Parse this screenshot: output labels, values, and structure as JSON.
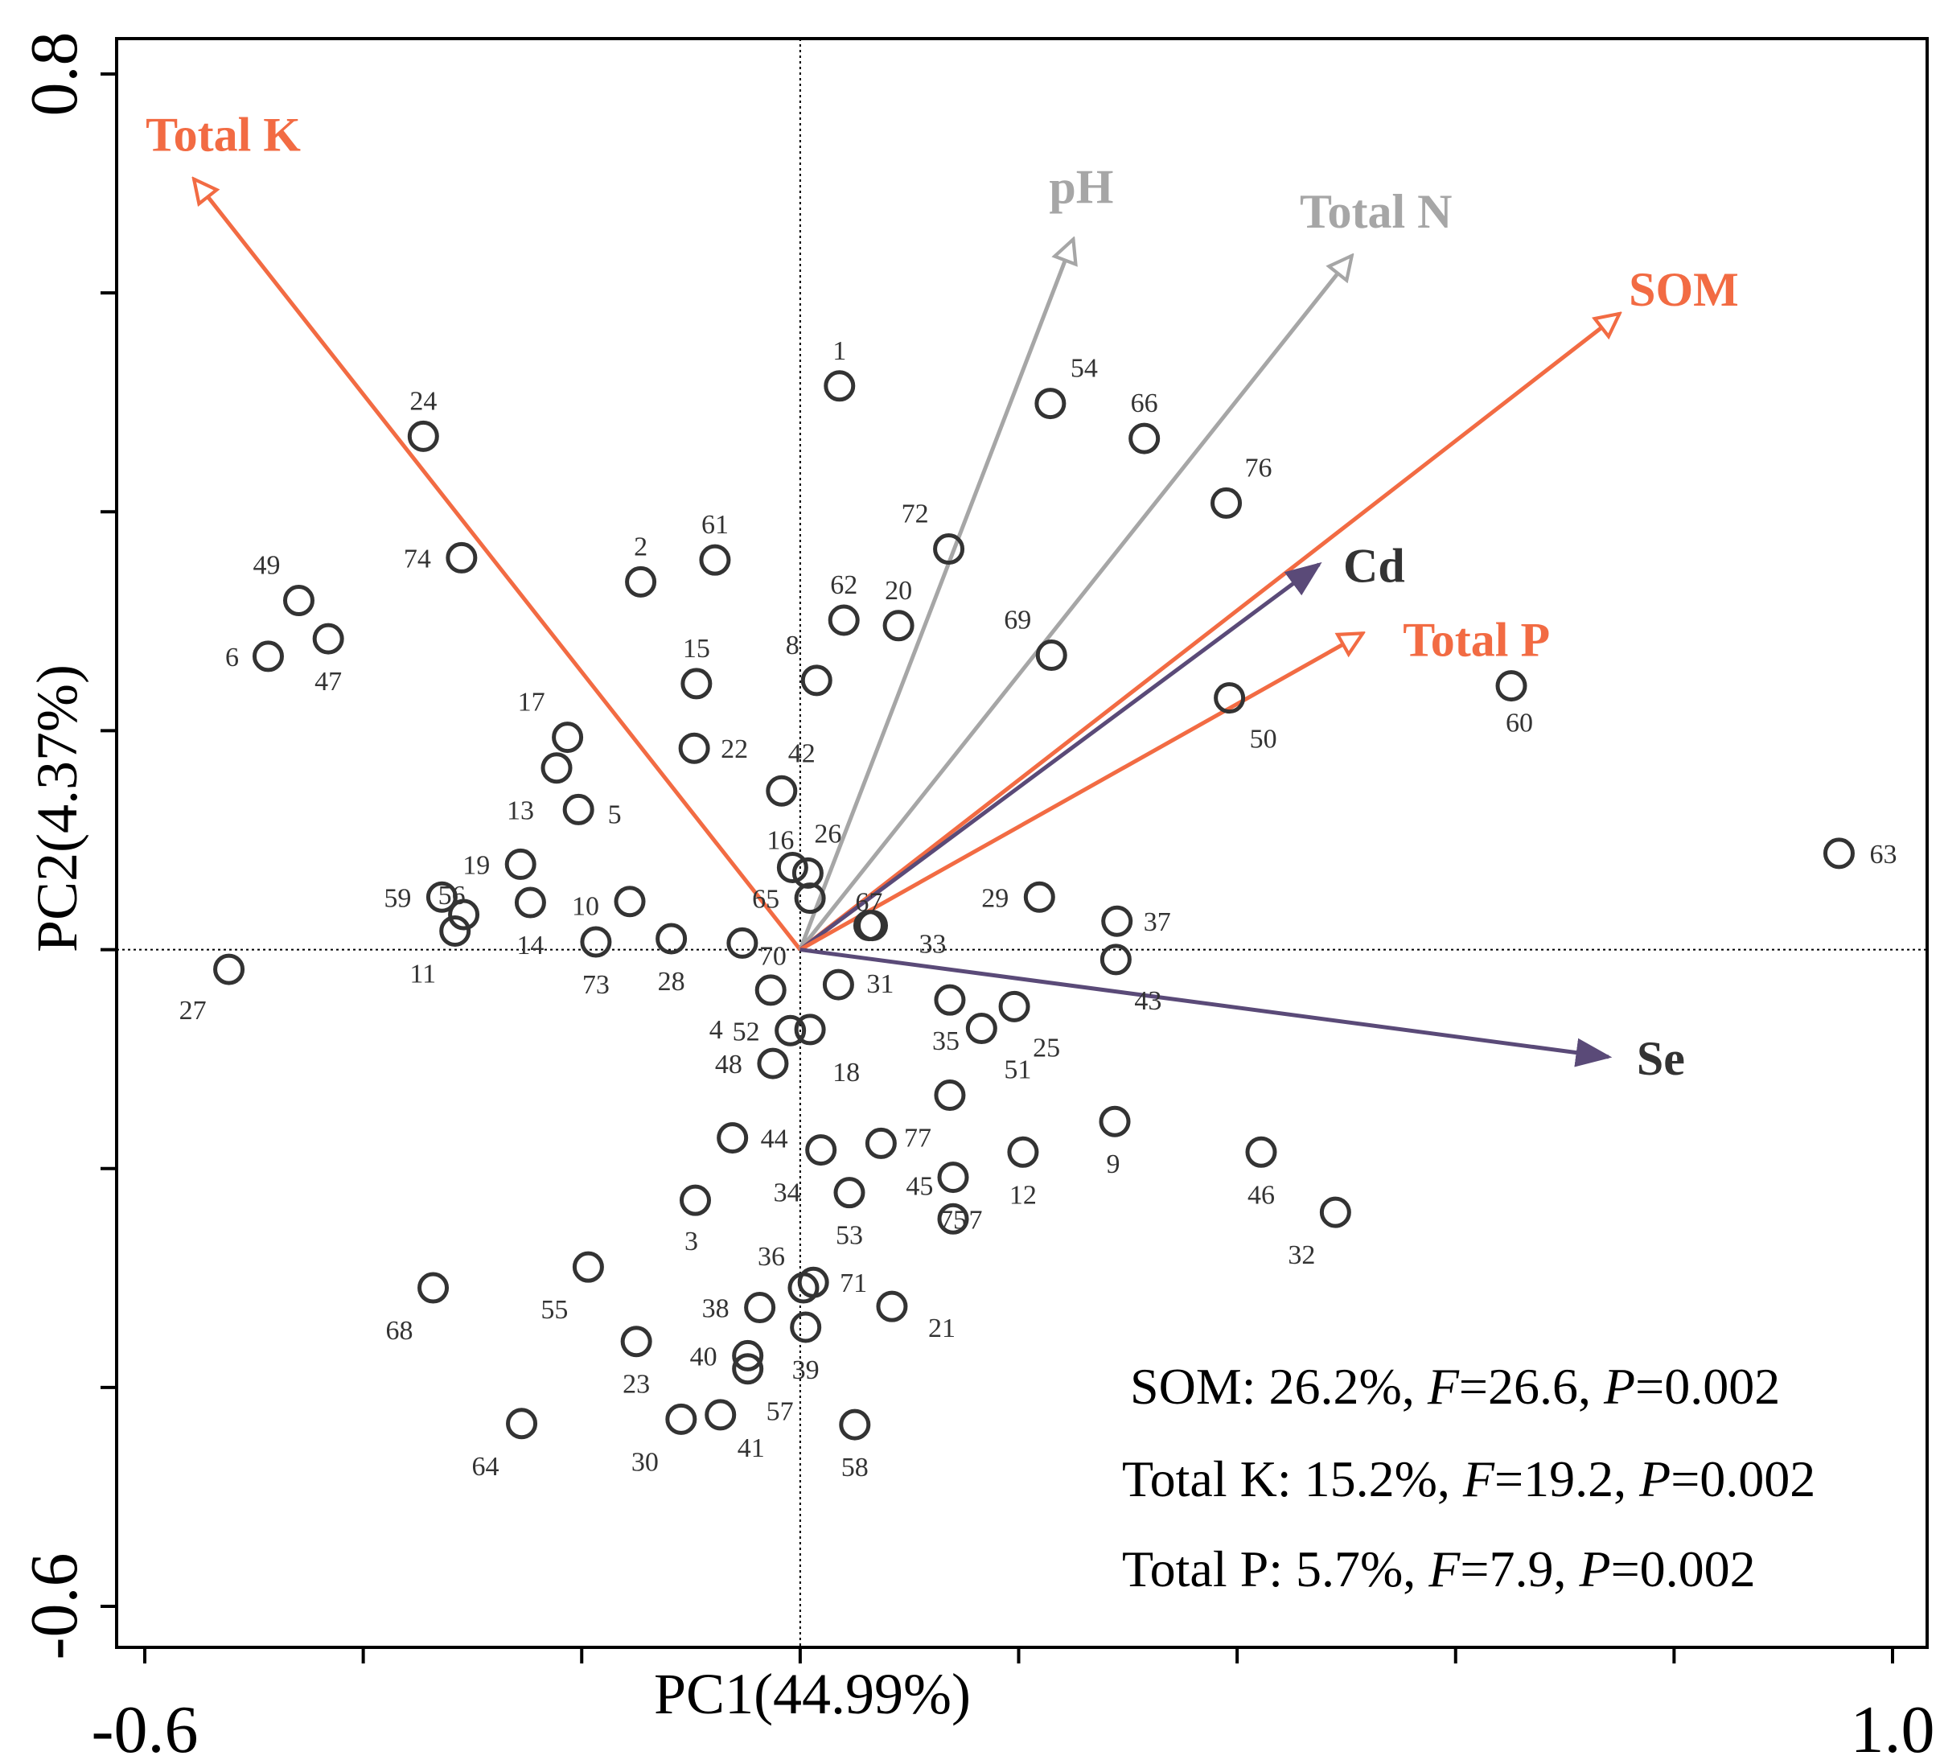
{
  "chart_data": {
    "type": "scatter",
    "subtype": "rda-biplot",
    "xlabel": "PC1(44.99%)",
    "ylabel": "PC2(4.37%)",
    "xlim": [
      -0.6,
      1.0
    ],
    "ylim": [
      -0.6,
      0.8
    ],
    "x_tick_labels": [
      {
        "value": -0.6,
        "label": "-0.6"
      },
      {
        "value": 1.0,
        "label": "1.0"
      }
    ],
    "y_tick_labels": [
      {
        "value": 0.8,
        "label": "0.8"
      },
      {
        "value": -0.6,
        "label": "-0.6"
      }
    ],
    "x_ticks": [
      -0.6,
      -0.4,
      -0.2,
      0.0,
      0.2,
      0.4,
      0.6,
      0.8,
      1.0
    ],
    "y_ticks": [
      0.8,
      0.6,
      0.4,
      0.2,
      0.0,
      -0.2,
      -0.4,
      -0.6
    ],
    "reference_lines": {
      "x": 0,
      "y": 0,
      "style": "dotted"
    },
    "arrows": [
      {
        "name": "Total K",
        "x": -0.555,
        "y": 0.704,
        "color": "#f26b43",
        "head": "open"
      },
      {
        "name": "pH",
        "x": 0.25,
        "y": 0.649,
        "color": "#a6a6a6",
        "head": "open"
      },
      {
        "name": "Total N",
        "x": 0.505,
        "y": 0.634,
        "color": "#a6a6a6",
        "head": "open"
      },
      {
        "name": "SOM",
        "x": 0.75,
        "y": 0.581,
        "color": "#f26b43",
        "head": "open"
      },
      {
        "name": "Cd",
        "x": 0.475,
        "y": 0.352,
        "color": "#5a4a78",
        "head": "filled"
      },
      {
        "name": "Total P",
        "x": 0.515,
        "y": 0.289,
        "color": "#f26b43",
        "head": "open"
      },
      {
        "name": "Se",
        "x": 0.74,
        "y": -0.098,
        "color": "#5a4a78",
        "head": "filled"
      }
    ],
    "points": [
      {
        "label": "1",
        "x": 0.036,
        "y": 0.515
      },
      {
        "label": "2",
        "x": -0.146,
        "y": 0.336
      },
      {
        "label": "3",
        "x": -0.096,
        "y": -0.229
      },
      {
        "label": "4",
        "x": -0.027,
        "y": -0.037
      },
      {
        "label": "5",
        "x": -0.203,
        "y": 0.128
      },
      {
        "label": "6",
        "x": -0.487,
        "y": 0.268
      },
      {
        "label": "7",
        "x": 0.14,
        "y": -0.246
      },
      {
        "label": "8",
        "x": 0.015,
        "y": 0.246
      },
      {
        "label": "9",
        "x": 0.288,
        "y": -0.157
      },
      {
        "label": "10",
        "x": -0.156,
        "y": 0.044
      },
      {
        "label": "11",
        "x": -0.316,
        "y": 0.017
      },
      {
        "label": "12",
        "x": 0.204,
        "y": -0.185
      },
      {
        "label": "13",
        "x": -0.223,
        "y": 0.166
      },
      {
        "label": "14",
        "x": -0.247,
        "y": 0.043
      },
      {
        "label": "15",
        "x": -0.095,
        "y": 0.243
      },
      {
        "label": "16",
        "x": -0.007,
        "y": 0.075
      },
      {
        "label": "17",
        "x": -0.213,
        "y": 0.194
      },
      {
        "label": "18",
        "x": 0.009,
        "y": -0.073
      },
      {
        "label": "19",
        "x": -0.256,
        "y": 0.078
      },
      {
        "label": "20",
        "x": 0.09,
        "y": 0.296
      },
      {
        "label": "21",
        "x": 0.084,
        "y": -0.326
      },
      {
        "label": "22",
        "x": -0.097,
        "y": 0.184
      },
      {
        "label": "23",
        "x": -0.15,
        "y": -0.358
      },
      {
        "label": "24",
        "x": -0.345,
        "y": 0.469
      },
      {
        "label": "25",
        "x": 0.196,
        "y": -0.052
      },
      {
        "label": "26",
        "x": 0.007,
        "y": 0.07
      },
      {
        "label": "27",
        "x": -0.523,
        "y": -0.018
      },
      {
        "label": "28",
        "x": -0.118,
        "y": 0.01
      },
      {
        "label": "29",
        "x": 0.219,
        "y": 0.048
      },
      {
        "label": "30",
        "x": -0.109,
        "y": -0.429
      },
      {
        "label": "31",
        "x": 0.035,
        "y": -0.032
      },
      {
        "label": "32",
        "x": 0.49,
        "y": -0.24
      },
      {
        "label": "33",
        "x": 0.066,
        "y": 0.022
      },
      {
        "label": "34",
        "x": 0.019,
        "y": -0.183
      },
      {
        "label": "35",
        "x": 0.137,
        "y": -0.046
      },
      {
        "label": "36",
        "x": 0.003,
        "y": -0.309
      },
      {
        "label": "37",
        "x": 0.29,
        "y": 0.026
      },
      {
        "label": "38",
        "x": -0.037,
        "y": -0.327
      },
      {
        "label": "39",
        "x": 0.005,
        "y": -0.345
      },
      {
        "label": "40",
        "x": -0.048,
        "y": -0.371
      },
      {
        "label": "41",
        "x": -0.073,
        "y": -0.425
      },
      {
        "label": "42",
        "x": -0.017,
        "y": 0.145
      },
      {
        "label": "43",
        "x": 0.289,
        "y": -0.009
      },
      {
        "label": "44",
        "x": -0.062,
        "y": -0.172
      },
      {
        "label": "45",
        "x": 0.074,
        "y": -0.177
      },
      {
        "label": "46",
        "x": 0.422,
        "y": -0.185
      },
      {
        "label": "47",
        "x": -0.432,
        "y": 0.284
      },
      {
        "label": "48",
        "x": -0.025,
        "y": -0.104
      },
      {
        "label": "49",
        "x": -0.459,
        "y": 0.319
      },
      {
        "label": "50",
        "x": 0.393,
        "y": 0.23
      },
      {
        "label": "51",
        "x": 0.166,
        "y": -0.072
      },
      {
        "label": "52",
        "x": -0.009,
        "y": -0.074
      },
      {
        "label": "53",
        "x": 0.045,
        "y": -0.222
      },
      {
        "label": "54",
        "x": 0.229,
        "y": 0.499
      },
      {
        "label": "55",
        "x": -0.194,
        "y": -0.29
      },
      {
        "label": "56",
        "x": -0.308,
        "y": 0.032
      },
      {
        "label": "57",
        "x": -0.048,
        "y": -0.383
      },
      {
        "label": "58",
        "x": 0.05,
        "y": -0.434
      },
      {
        "label": "59",
        "x": -0.328,
        "y": 0.048
      },
      {
        "label": "60",
        "x": 0.651,
        "y": 0.241
      },
      {
        "label": "61",
        "x": -0.078,
        "y": 0.356
      },
      {
        "label": "62",
        "x": 0.04,
        "y": 0.301
      },
      {
        "label": "63",
        "x": 0.951,
        "y": 0.088
      },
      {
        "label": "64",
        "x": -0.255,
        "y": -0.433
      },
      {
        "label": "65",
        "x": 0.009,
        "y": 0.047
      },
      {
        "label": "66",
        "x": 0.315,
        "y": 0.467
      },
      {
        "label": "67",
        "x": 0.063,
        "y": 0.022
      },
      {
        "label": "68",
        "x": -0.336,
        "y": -0.309
      },
      {
        "label": "69",
        "x": 0.23,
        "y": 0.269
      },
      {
        "label": "70",
        "x": -0.053,
        "y": 0.006
      },
      {
        "label": "71",
        "x": 0.012,
        "y": -0.304
      },
      {
        "label": "72",
        "x": 0.136,
        "y": 0.366
      },
      {
        "label": "73",
        "x": -0.187,
        "y": 0.007
      },
      {
        "label": "74",
        "x": -0.31,
        "y": 0.358
      },
      {
        "label": "75",
        "x": 0.14,
        "y": -0.208
      },
      {
        "label": "76",
        "x": 0.39,
        "y": 0.408
      },
      {
        "label": "77",
        "x": 0.137,
        "y": -0.133
      }
    ],
    "annotations": [
      {
        "prefix": "SOM: 26.2%, ",
        "F": "26.6",
        "P": "0.002"
      },
      {
        "prefix": "Total K: 15.2%, ",
        "F": "19.2",
        "P": "0.002"
      },
      {
        "prefix": "Total P: 5.7%, ",
        "F": "7.9",
        "P": "0.002"
      }
    ],
    "annotation_symbols": {
      "f": "F",
      "p": "P",
      "eq": "=",
      "sep": ", "
    }
  }
}
